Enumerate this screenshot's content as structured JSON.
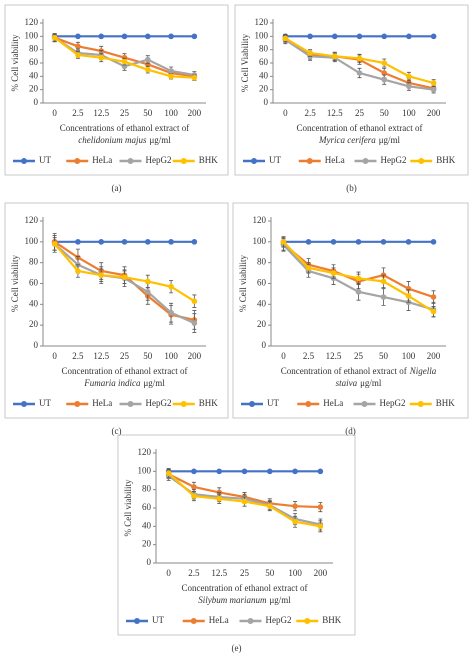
{
  "chart_data": [
    {
      "type": "line",
      "panel": "(a)",
      "ylabel": "% Cell viability",
      "xlabel": [
        [
          {
            "text": "Concentrations of ethanol extract of",
            "italic": false
          }
        ],
        [
          {
            "text": "chelidonium majus",
            "italic": true
          },
          {
            "text": "μg/ml",
            "italic": false
          }
        ]
      ],
      "categories": [
        "0",
        "2.5",
        "12.5",
        "25",
        "50",
        "100",
        "200"
      ],
      "ylim": [
        0,
        120
      ],
      "yticks": [
        0,
        20,
        40,
        60,
        80,
        100,
        120
      ],
      "series": [
        {
          "name": "UT",
          "color": "#4472c4",
          "values": [
            100,
            100,
            100,
            100,
            100,
            100,
            100
          ]
        },
        {
          "name": "HeLa",
          "color": "#ed7d31",
          "values": [
            98,
            85,
            78,
            68,
            58,
            45,
            40
          ],
          "errors": [
            6,
            6,
            7,
            6,
            6,
            5,
            4
          ]
        },
        {
          "name": "HepG2",
          "color": "#a5a5a5",
          "values": [
            98,
            75,
            72,
            55,
            65,
            48,
            42
          ],
          "errors": [
            6,
            6,
            7,
            6,
            6,
            6,
            5
          ]
        },
        {
          "name": "BHK",
          "color": "#ffc000",
          "values": [
            98,
            72,
            68,
            62,
            50,
            40,
            38
          ],
          "errors": [
            5,
            5,
            6,
            5,
            5,
            4,
            4
          ]
        }
      ]
    },
    {
      "type": "line",
      "panel": "(b)",
      "ylabel": "% Cell Viability",
      "xlabel": [
        [
          {
            "text": "Concentration of ethanol extract of",
            "italic": false
          }
        ],
        [
          {
            "text": "Myrica cerifera",
            "italic": true
          },
          {
            "text": "μg/ml",
            "italic": false
          }
        ]
      ],
      "categories": [
        "0",
        "2.5",
        "12.5",
        "25",
        "50",
        "100",
        "200"
      ],
      "ylim": [
        0,
        120
      ],
      "yticks": [
        0,
        20,
        40,
        60,
        80,
        100,
        120
      ],
      "series": [
        {
          "name": "UT",
          "color": "#4472c4",
          "values": [
            100,
            100,
            100,
            100,
            100,
            100,
            100
          ]
        },
        {
          "name": "HeLa",
          "color": "#ed7d31",
          "values": [
            97,
            72,
            70,
            65,
            45,
            30,
            22
          ],
          "errors": [
            6,
            6,
            6,
            7,
            7,
            6,
            5
          ]
        },
        {
          "name": "HepG2",
          "color": "#a5a5a5",
          "values": [
            95,
            70,
            68,
            45,
            35,
            25,
            20
          ],
          "errors": [
            6,
            6,
            6,
            7,
            7,
            6,
            5
          ]
        },
        {
          "name": "BHK",
          "color": "#ffc000",
          "values": [
            97,
            75,
            70,
            67,
            60,
            40,
            30
          ],
          "errors": [
            5,
            5,
            6,
            6,
            6,
            6,
            5
          ]
        }
      ]
    },
    {
      "type": "line",
      "panel": "(c)",
      "ylabel": "% Cell viability",
      "xlabel": [
        [
          {
            "text": "Concentration of ethanol extract of",
            "italic": false
          }
        ],
        [
          {
            "text": "Fumaria indica",
            "italic": true
          },
          {
            "text": "μg/ml",
            "italic": false
          }
        ]
      ],
      "categories": [
        "0",
        "2.5",
        "12.5",
        "25",
        "50",
        "100",
        "200"
      ],
      "ylim": [
        0,
        120
      ],
      "yticks": [
        0,
        20,
        40,
        60,
        80,
        100,
        120
      ],
      "series": [
        {
          "name": "UT",
          "color": "#4472c4",
          "values": [
            100,
            100,
            100,
            100,
            100,
            100,
            100
          ]
        },
        {
          "name": "HeLa",
          "color": "#ed7d31",
          "values": [
            100,
            85,
            72,
            68,
            48,
            30,
            25
          ],
          "errors": [
            8,
            8,
            8,
            8,
            8,
            9,
            9
          ]
        },
        {
          "name": "HepG2",
          "color": "#a5a5a5",
          "values": [
            98,
            78,
            68,
            65,
            52,
            32,
            22
          ],
          "errors": [
            8,
            8,
            8,
            8,
            8,
            9,
            9
          ]
        },
        {
          "name": "BHK",
          "color": "#ffc000",
          "values": [
            98,
            72,
            68,
            66,
            62,
            57,
            43
          ],
          "errors": [
            6,
            6,
            6,
            6,
            6,
            6,
            6
          ]
        }
      ]
    },
    {
      "type": "line",
      "panel": "(d)",
      "ylabel": "% Cell viability",
      "xlabel": [
        [
          {
            "text": "Concentration of ethanol extract of",
            "italic": false
          },
          {
            "text": "Nigella",
            "italic": true
          }
        ],
        [
          {
            "text": "staiva",
            "italic": true
          },
          {
            "text": "μg/ml",
            "italic": false
          }
        ]
      ],
      "categories": [
        "0",
        "2.5",
        "12.5",
        "25",
        "50",
        "100",
        "200"
      ],
      "ylim": [
        0,
        120
      ],
      "yticks": [
        0,
        20,
        40,
        60,
        80,
        100,
        120
      ],
      "series": [
        {
          "name": "UT",
          "color": "#4472c4",
          "values": [
            100,
            100,
            100,
            100,
            100,
            100,
            100
          ]
        },
        {
          "name": "HeLa",
          "color": "#ed7d31",
          "values": [
            98,
            78,
            72,
            62,
            68,
            55,
            47
          ],
          "errors": [
            6,
            6,
            6,
            7,
            7,
            7,
            6
          ]
        },
        {
          "name": "HepG2",
          "color": "#a5a5a5",
          "values": [
            97,
            72,
            65,
            52,
            47,
            42,
            35
          ],
          "errors": [
            6,
            6,
            6,
            8,
            8,
            8,
            7
          ]
        },
        {
          "name": "BHK",
          "color": "#ffc000",
          "values": [
            100,
            75,
            70,
            65,
            62,
            48,
            33
          ],
          "errors": [
            5,
            5,
            5,
            6,
            6,
            6,
            5
          ]
        }
      ]
    },
    {
      "type": "line",
      "panel": "(e)",
      "ylabel": "% Cell viability",
      "xlabel": [
        [
          {
            "text": "Concentration of ethanol extract of",
            "italic": false
          }
        ],
        [
          {
            "text": "Silybum marianum",
            "italic": true
          },
          {
            "text": "μg/ml",
            "italic": false
          }
        ]
      ],
      "categories": [
        "0",
        "2.5",
        "12.5",
        "25",
        "50",
        "100",
        "200"
      ],
      "ylim": [
        0,
        120
      ],
      "yticks": [
        0,
        20,
        40,
        60,
        80,
        100,
        120
      ],
      "series": [
        {
          "name": "UT",
          "color": "#4472c4",
          "values": [
            100,
            100,
            100,
            100,
            100,
            100,
            100
          ]
        },
        {
          "name": "HeLa",
          "color": "#ed7d31",
          "values": [
            97,
            83,
            77,
            72,
            65,
            62,
            61
          ],
          "errors": [
            5,
            5,
            5,
            5,
            5,
            5,
            5
          ]
        },
        {
          "name": "HepG2",
          "color": "#a5a5a5",
          "values": [
            95,
            75,
            72,
            70,
            63,
            48,
            42
          ],
          "errors": [
            5,
            5,
            5,
            5,
            5,
            6,
            6
          ]
        },
        {
          "name": "BHK",
          "color": "#ffc000",
          "values": [
            98,
            73,
            70,
            67,
            62,
            45,
            40
          ],
          "errors": [
            5,
            5,
            5,
            5,
            5,
            6,
            6
          ]
        }
      ]
    }
  ]
}
